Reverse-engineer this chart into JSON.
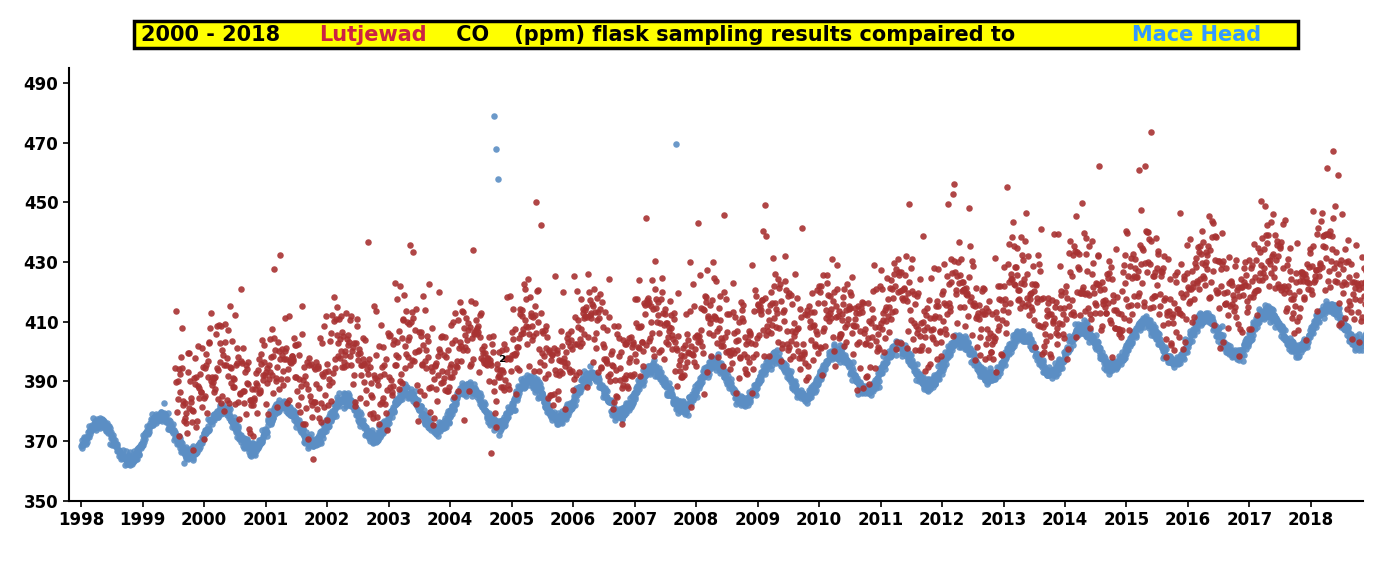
{
  "title_bg": "#ffff00",
  "title_border": "#000000",
  "xlim": [
    1997.8,
    2018.85
  ],
  "ylim": [
    350,
    495
  ],
  "yticks": [
    350,
    370,
    390,
    410,
    430,
    450,
    470,
    490
  ],
  "xticks": [
    1998,
    1999,
    2000,
    2001,
    2002,
    2003,
    2004,
    2005,
    2006,
    2007,
    2008,
    2009,
    2010,
    2011,
    2012,
    2013,
    2014,
    2015,
    2016,
    2017,
    2018
  ],
  "mace_head_color": "#5b8ec4",
  "lutjewad_color": "#a83232",
  "dot_size_mh": 22,
  "dot_size_lj": 22,
  "background_color": "#ffffff",
  "seed": 42,
  "fontsize_title": 15,
  "fontsize_ticks": 12
}
